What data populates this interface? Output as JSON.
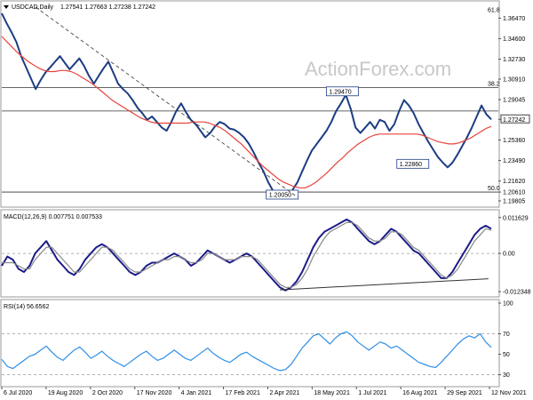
{
  "window": {
    "symbol_header": "USDCAD,Daily",
    "ohlc": "1.27541 1.27663 1.27238 1.27242",
    "watermark": "ActionForex.com"
  },
  "chart_data": [
    {
      "type": "line",
      "panel": "price",
      "title": "USDCAD,Daily",
      "ylim": [
        1.194,
        1.378
      ],
      "y_ticks": [
        "1.36470",
        "1.34600",
        "1.32730",
        "1.30910",
        "1.29045",
        "1.27242",
        "1.25360",
        "1.23490",
        "1.21620",
        "1.20610",
        "1.19805"
      ],
      "current_price": "1.27242",
      "annotations": [
        {
          "text": "1.29470",
          "x": 0.718,
          "y": 1.2947
        },
        {
          "text": "1.22860",
          "x": 0.86,
          "y": 1.2286
        },
        {
          "text": "1.20050",
          "x": 0.597,
          "y": 1.2005
        }
      ],
      "fib_levels": [
        {
          "label": "61.8",
          "y": 1.3685
        },
        {
          "label": "38.2",
          "y": 1.3015
        },
        {
          "label": "50.0",
          "y": 1.2061
        }
      ],
      "horizontal_lines": [
        1.3015,
        1.28,
        1.2061
      ],
      "series": [
        {
          "role": "price",
          "color": "#1c3d82",
          "values": [
            1.369,
            1.36,
            1.352,
            1.343,
            1.33,
            1.32,
            1.31,
            1.3,
            1.308,
            1.315,
            1.32,
            1.325,
            1.33,
            1.324,
            1.318,
            1.323,
            1.328,
            1.321,
            1.312,
            1.305,
            1.312,
            1.319,
            1.325,
            1.315,
            1.305,
            1.3,
            1.296,
            1.29,
            1.283,
            1.278,
            1.272,
            1.275,
            1.27,
            1.265,
            1.262,
            1.27,
            1.28,
            1.287,
            1.279,
            1.272,
            1.268,
            1.262,
            1.256,
            1.26,
            1.266,
            1.27,
            1.268,
            1.264,
            1.263,
            1.26,
            1.256,
            1.25,
            1.242,
            1.233,
            1.225,
            1.215,
            1.207,
            1.203,
            1.202,
            1.2005,
            1.208,
            1.215,
            1.225,
            1.235,
            1.244,
            1.25,
            1.256,
            1.262,
            1.27,
            1.28,
            1.287,
            1.2947,
            1.282,
            1.265,
            1.26,
            1.265,
            1.27,
            1.264,
            1.272,
            1.27,
            1.262,
            1.268,
            1.28,
            1.29,
            1.285,
            1.278,
            1.268,
            1.26,
            1.252,
            1.245,
            1.238,
            1.233,
            1.2286,
            1.233,
            1.24,
            1.248,
            1.256,
            1.265,
            1.275,
            1.285,
            1.277,
            1.2724
          ]
        },
        {
          "role": "moving-average",
          "color": "#e8423c",
          "values": [
            1.348,
            1.343,
            1.338,
            1.333,
            1.329,
            1.325,
            1.322,
            1.319,
            1.317,
            1.316,
            1.316,
            1.317,
            1.317,
            1.316,
            1.314,
            1.311,
            1.308,
            1.305,
            1.301,
            1.297,
            1.293,
            1.289,
            1.286,
            1.283,
            1.28,
            1.277,
            1.274,
            1.272,
            1.27,
            1.269,
            1.269,
            1.269,
            1.269,
            1.269,
            1.269,
            1.269,
            1.27,
            1.27,
            1.27,
            1.269,
            1.267,
            1.265,
            1.262,
            1.258,
            1.254,
            1.25,
            1.245,
            1.24,
            1.235,
            1.23,
            1.226,
            1.222,
            1.218,
            1.215,
            1.213,
            1.211,
            1.21,
            1.21,
            1.212,
            1.215,
            1.219,
            1.223,
            1.228,
            1.233,
            1.237,
            1.242,
            1.246,
            1.25,
            1.253,
            1.256,
            1.258,
            1.259,
            1.259,
            1.259,
            1.259,
            1.259,
            1.259,
            1.259,
            1.259,
            1.258,
            1.256,
            1.254,
            1.252,
            1.251,
            1.25,
            1.25,
            1.251,
            1.253,
            1.255,
            1.258,
            1.261,
            1.264,
            1.266
          ]
        }
      ]
    },
    {
      "type": "line",
      "panel": "macd",
      "title": "MACD(12,26,9) 0.007751 0.007533",
      "ylim": [
        -0.0135,
        0.013
      ],
      "y_ticks": [
        "0.011629",
        "0.00",
        "-0.012348"
      ],
      "series": [
        {
          "role": "macd",
          "color": "#1c1c8a",
          "values": [
            -0.004,
            -0.001,
            -0.002,
            -0.005,
            -0.006,
            -0.004,
            0.0,
            0.002,
            0.004,
            0.001,
            -0.002,
            -0.004,
            -0.006,
            -0.007,
            -0.005,
            -0.002,
            0.0,
            0.002,
            0.003,
            0.002,
            0.0,
            -0.002,
            -0.004,
            -0.006,
            -0.007,
            -0.006,
            -0.004,
            -0.003,
            -0.003,
            -0.002,
            -0.001,
            0.0,
            -0.001,
            -0.002,
            -0.004,
            -0.003,
            -0.001,
            0.001,
            0.0,
            -0.001,
            -0.002,
            -0.003,
            -0.002,
            -0.001,
            0.0,
            -0.001,
            -0.003,
            -0.005,
            -0.007,
            -0.009,
            -0.011,
            -0.012,
            -0.011,
            -0.009,
            -0.006,
            -0.002,
            0.002,
            0.005,
            0.007,
            0.008,
            0.009,
            0.01,
            0.011,
            0.01,
            0.008,
            0.006,
            0.004,
            0.003,
            0.004,
            0.006,
            0.008,
            0.007,
            0.005,
            0.003,
            0.001,
            0.0,
            -0.002,
            -0.004,
            -0.006,
            -0.008,
            -0.008,
            -0.006,
            -0.003,
            0.0,
            0.003,
            0.006,
            0.008,
            0.009,
            0.008
          ]
        },
        {
          "role": "signal",
          "color": "#888888",
          "values": [
            -0.003,
            -0.003,
            -0.003,
            -0.004,
            -0.005,
            -0.005,
            -0.002,
            0.0,
            0.002,
            0.002,
            0.0,
            -0.002,
            -0.004,
            -0.006,
            -0.006,
            -0.004,
            -0.002,
            0.0,
            0.002,
            0.002,
            0.001,
            -0.001,
            -0.003,
            -0.005,
            -0.006,
            -0.006,
            -0.005,
            -0.004,
            -0.003,
            -0.002,
            -0.002,
            -0.001,
            -0.001,
            -0.002,
            -0.003,
            -0.003,
            -0.002,
            0.0,
            0.0,
            -0.001,
            -0.002,
            -0.002,
            -0.002,
            -0.001,
            -0.001,
            -0.001,
            -0.002,
            -0.004,
            -0.006,
            -0.008,
            -0.01,
            -0.011,
            -0.011,
            -0.01,
            -0.008,
            -0.005,
            -0.001,
            0.002,
            0.005,
            0.007,
            0.008,
            0.009,
            0.01,
            0.01,
            0.009,
            0.007,
            0.005,
            0.004,
            0.004,
            0.005,
            0.007,
            0.007,
            0.006,
            0.004,
            0.002,
            0.001,
            -0.001,
            -0.003,
            -0.005,
            -0.007,
            -0.008,
            -0.007,
            -0.005,
            -0.002,
            0.001,
            0.004,
            0.006,
            0.008,
            0.0075
          ]
        }
      ],
      "trend_line": [
        [
          0.56,
          -0.0118
        ],
        [
          0.98,
          -0.0082
        ]
      ]
    },
    {
      "type": "line",
      "panel": "rsi",
      "title": "RSI(14) 56.6562",
      "ylim": [
        20,
        100
      ],
      "y_ticks": [
        "100",
        "70",
        "50",
        "30"
      ],
      "levels": [
        70,
        30
      ],
      "series": [
        {
          "role": "rsi",
          "color": "#2f8fe6",
          "values": [
            45,
            38,
            36,
            40,
            44,
            48,
            50,
            54,
            58,
            52,
            47,
            44,
            49,
            54,
            57,
            52,
            46,
            49,
            53,
            48,
            44,
            41,
            38,
            42,
            46,
            50,
            53,
            48,
            44,
            46,
            50,
            54,
            50,
            46,
            44,
            48,
            52,
            56,
            51,
            47,
            44,
            42,
            46,
            50,
            52,
            48,
            45,
            42,
            39,
            36,
            34,
            35,
            40,
            48,
            56,
            62,
            68,
            70,
            65,
            60,
            66,
            70,
            72,
            68,
            62,
            58,
            54,
            58,
            62,
            60,
            56,
            58,
            54,
            50,
            46,
            42,
            40,
            38,
            37,
            42,
            48,
            54,
            60,
            65,
            68,
            66,
            70,
            62,
            56.66
          ]
        }
      ]
    }
  ],
  "x_axis": {
    "tick_labels": [
      "6 Jul 2020",
      "19 Aug 2020",
      "2 Oct 2020",
      "17 Nov 2020",
      "4 Jan 2021",
      "17 Feb 2021",
      "2 Apr 2021",
      "18 May 2021",
      "1 Jul 2021",
      "16 Aug 2021",
      "29 Sep 2021",
      "12 Nov 2021"
    ]
  },
  "colors": {
    "price": "#1c3d82",
    "ma": "#e8423c",
    "macd": "#1c1c8a",
    "signal": "#888888",
    "rsi": "#2f8fe6",
    "grid": "#cccccc",
    "watermark": "#c8c8c8"
  }
}
